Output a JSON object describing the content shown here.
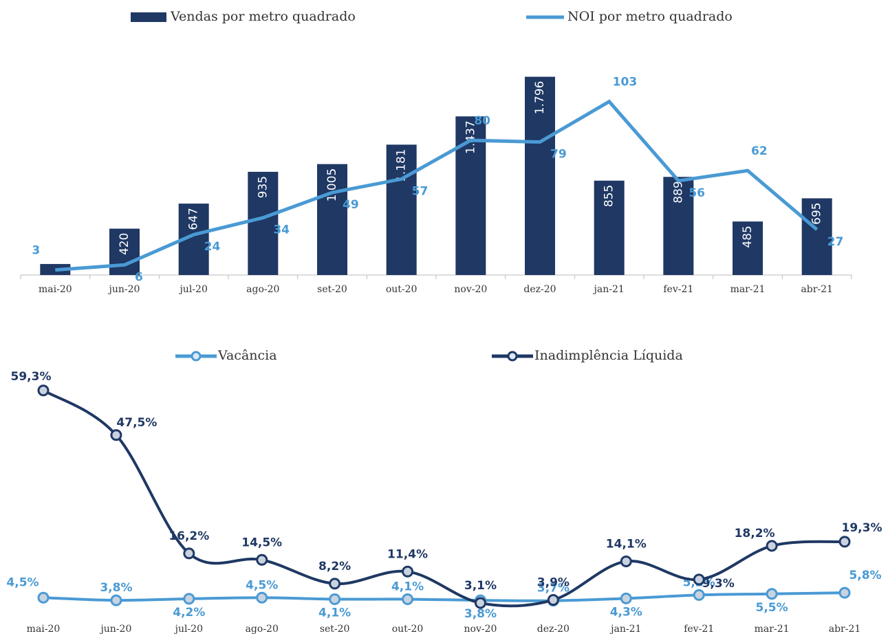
{
  "chart_data": [
    {
      "type": "bar",
      "categories": [
        "mai-20",
        "jun-20",
        "jul-20",
        "ago-20",
        "set-20",
        "out-20",
        "nov-20",
        "dez-20",
        "jan-21",
        "fev-21",
        "mar-21",
        "abr-21"
      ],
      "series": [
        {
          "name": "Vendas por metro quadrado",
          "color": "#1f3864",
          "values": [
            100,
            420,
            647,
            935,
            1005,
            1181,
            1437,
            1796,
            855,
            889,
            485,
            695
          ],
          "value_labels": [
            null,
            "420",
            "647",
            "935",
            "1.005",
            "1.181",
            "1.437",
            "1.796",
            "855",
            "889",
            "485",
            "695"
          ]
        },
        {
          "name": "NOI por metro quadrado",
          "type": "line",
          "axis": "y2",
          "color": "#4a9ad4",
          "values": [
            3,
            6,
            24,
            34,
            49,
            57,
            80,
            79,
            103,
            56,
            62,
            27
          ]
        }
      ],
      "ylim": [
        0,
        1800
      ],
      "y2lim": [
        0,
        118
      ]
    },
    {
      "type": "line",
      "categories": [
        "mai-20",
        "jun-20",
        "jul-20",
        "ago-20",
        "set-20",
        "out-20",
        "nov-20",
        "dez-20",
        "jan-21",
        "fev-21",
        "mar-21",
        "abr-21"
      ],
      "series": [
        {
          "name": "Vacância",
          "color": "#4a9ad4",
          "values": [
            4.5,
            3.8,
            4.2,
            4.5,
            4.1,
            4.1,
            3.8,
            3.7,
            4.3,
            5.2,
            5.5,
            5.8
          ],
          "value_labels": [
            "4,5%",
            "3,8%",
            "4,2%",
            "4,5%",
            "4,1%",
            "4,1%",
            "3,8%",
            "3,7%",
            "4,3%",
            "5,2%",
            "5,5%",
            "5,8%"
          ]
        },
        {
          "name": "Inadimplência Líquida",
          "color": "#1f3864",
          "values": [
            59.3,
            47.5,
            16.2,
            14.5,
            8.2,
            11.4,
            3.1,
            3.9,
            14.1,
            9.3,
            18.2,
            19.3
          ],
          "value_labels": [
            "59,3%",
            "47,5%",
            "16,2%",
            "14,5%",
            "8,2%",
            "11,4%",
            "3,1%",
            "3,9%",
            "14,1%",
            "9,3%",
            "18,2%",
            "19,3%"
          ]
        }
      ],
      "ylim": [
        0,
        60
      ]
    }
  ]
}
